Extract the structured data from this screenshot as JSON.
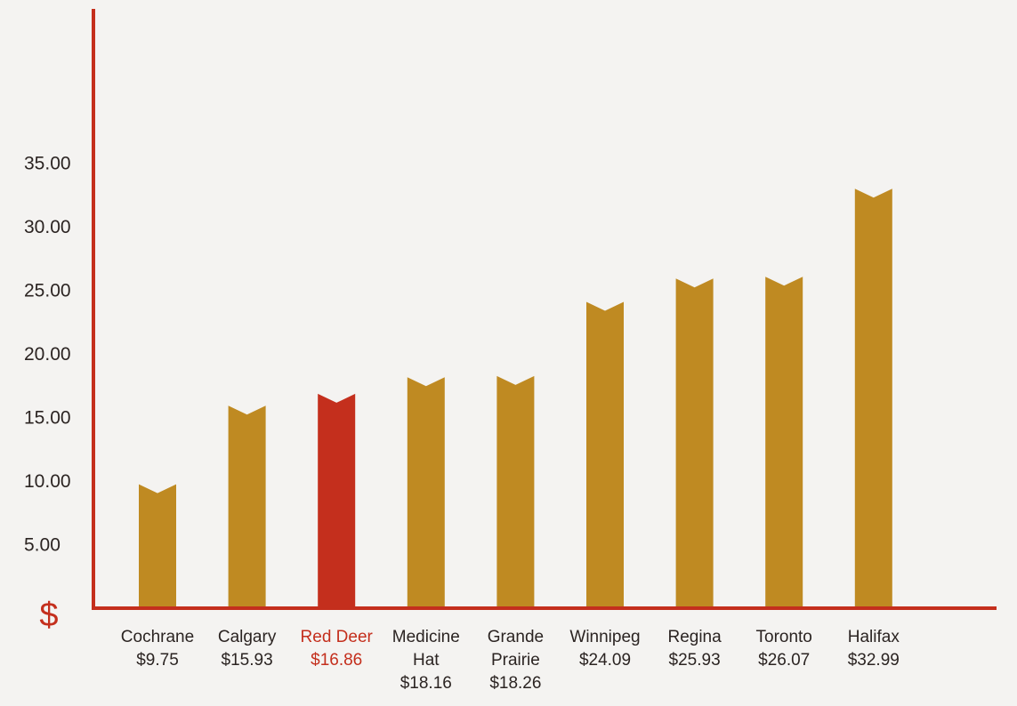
{
  "chart_data": {
    "type": "bar",
    "currency_symbol": "$",
    "y_ticks": [
      "5.00",
      "10.00",
      "15.00",
      "20.00",
      "25.00",
      "30.00",
      "35.00"
    ],
    "ylim": [
      0,
      35
    ],
    "grid": false,
    "categories": [
      {
        "name_lines": [
          "Cochrane"
        ],
        "value_label": "$9.75",
        "value": 9.75,
        "highlight": false
      },
      {
        "name_lines": [
          "Calgary"
        ],
        "value_label": "$15.93",
        "value": 15.93,
        "highlight": false
      },
      {
        "name_lines": [
          "Red Deer"
        ],
        "value_label": "$16.86",
        "value": 16.86,
        "highlight": true
      },
      {
        "name_lines": [
          "Medicine",
          "Hat"
        ],
        "value_label": "$18.16",
        "value": 18.16,
        "highlight": false
      },
      {
        "name_lines": [
          "Grande",
          "Prairie"
        ],
        "value_label": "$18.26",
        "value": 18.26,
        "highlight": false
      },
      {
        "name_lines": [
          "Winnipeg"
        ],
        "value_label": "$24.09",
        "value": 24.09,
        "highlight": false
      },
      {
        "name_lines": [
          "Regina"
        ],
        "value_label": "$25.93",
        "value": 25.93,
        "highlight": false
      },
      {
        "name_lines": [
          "Toronto"
        ],
        "value_label": "$26.07",
        "value": 26.07,
        "highlight": false
      },
      {
        "name_lines": [
          "Halifax"
        ],
        "value_label": "$32.99",
        "value": 32.99,
        "highlight": false
      }
    ],
    "colors": {
      "bar": "#bf8a22",
      "highlight_bar": "#c42f1d",
      "axis": "#c42f1d",
      "text": "#2b2422",
      "background": "#f4f3f1"
    }
  }
}
